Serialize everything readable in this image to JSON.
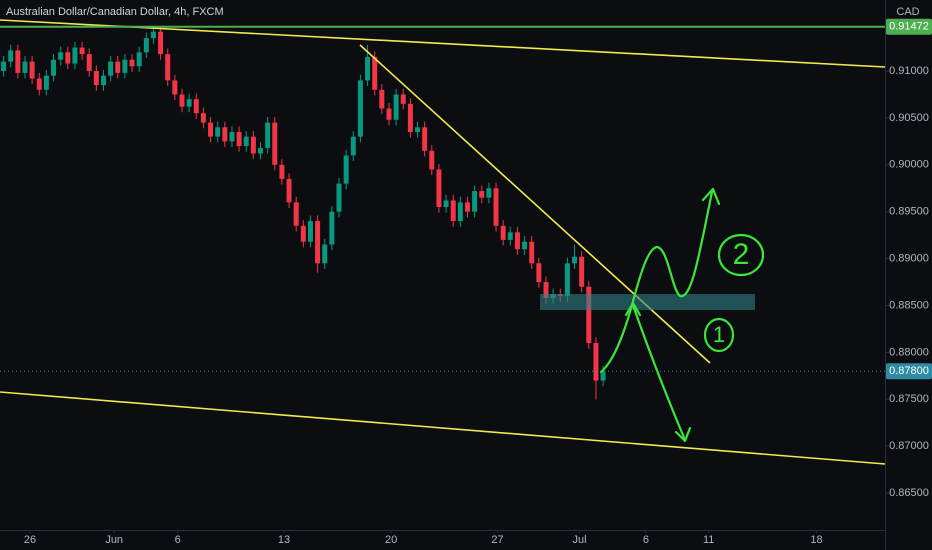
{
  "chart_data": {
    "type": "candlestick",
    "title": "Australian Dollar/Canadian Dollar, 4h, FXCM",
    "currency": "CAD",
    "up_color": "#089981",
    "down_color": "#f23645",
    "open": [
      0.91,
      0.911,
      0.9122,
      0.9098,
      0.911,
      0.9092,
      0.908,
      0.9095,
      0.9112,
      0.912,
      0.9108,
      0.9125,
      0.9118,
      0.91,
      0.9085,
      0.9095,
      0.911,
      0.9098,
      0.9112,
      0.9105,
      0.912,
      0.9135,
      0.9142,
      0.9118,
      0.909,
      0.9075,
      0.9062,
      0.907,
      0.9055,
      0.9045,
      0.903,
      0.904,
      0.9025,
      0.9035,
      0.902,
      0.903,
      0.9012,
      0.9018,
      0.9045,
      0.9,
      0.8985,
      0.896,
      0.8935,
      0.8918,
      0.894,
      0.8895,
      0.8915,
      0.895,
      0.898,
      0.901,
      0.903,
      0.909,
      0.9115,
      0.908,
      0.906,
      0.9048,
      0.9075,
      0.9065,
      0.9035,
      0.904,
      0.9015,
      0.8995,
      0.8955,
      0.8962,
      0.894,
      0.896,
      0.895,
      0.8972,
      0.8965,
      0.8975,
      0.8935,
      0.892,
      0.8928,
      0.891,
      0.8918,
      0.8895,
      0.8875,
      0.8858,
      0.8862,
      0.886,
      0.8895,
      0.8902,
      0.887,
      0.881,
      0.877
    ],
    "high": [
      0.9116,
      0.9128,
      0.9128,
      0.9116,
      0.9116,
      0.9098,
      0.9101,
      0.9118,
      0.9126,
      0.9126,
      0.9131,
      0.9131,
      0.9124,
      0.9106,
      0.9101,
      0.9116,
      0.9116,
      0.9118,
      0.9118,
      0.9126,
      0.9141,
      0.9148,
      0.9148,
      0.9124,
      0.9096,
      0.9081,
      0.9076,
      0.9076,
      0.9061,
      0.9051,
      0.9046,
      0.9046,
      0.9041,
      0.9041,
      0.9036,
      0.9036,
      0.9024,
      0.9051,
      0.9051,
      0.9006,
      0.8991,
      0.8966,
      0.8941,
      0.8946,
      0.8946,
      0.8921,
      0.8956,
      0.8986,
      0.9016,
      0.9036,
      0.9096,
      0.9128,
      0.9121,
      0.9086,
      0.9066,
      0.9081,
      0.9081,
      0.9071,
      0.9046,
      0.9046,
      0.9021,
      0.9001,
      0.8968,
      0.8968,
      0.8966,
      0.8966,
      0.8978,
      0.8978,
      0.8981,
      0.8981,
      0.8941,
      0.8934,
      0.8934,
      0.8924,
      0.8924,
      0.8901,
      0.8881,
      0.8868,
      0.8868,
      0.8901,
      0.8915,
      0.8908,
      0.8876,
      0.8816,
      0.8786
    ],
    "low": [
      0.9094,
      0.9104,
      0.9092,
      0.9092,
      0.9086,
      0.9074,
      0.9074,
      0.9089,
      0.9106,
      0.9102,
      0.9102,
      0.9112,
      0.9094,
      0.9079,
      0.9079,
      0.9089,
      0.9092,
      0.9092,
      0.9099,
      0.9099,
      0.9114,
      0.9129,
      0.9112,
      0.9084,
      0.9069,
      0.9056,
      0.9056,
      0.9049,
      0.9039,
      0.9024,
      0.9024,
      0.9019,
      0.9019,
      0.9014,
      0.9014,
      0.9006,
      0.9006,
      0.9012,
      0.8994,
      0.8979,
      0.8954,
      0.8929,
      0.8912,
      0.8912,
      0.8885,
      0.8889,
      0.8909,
      0.8944,
      0.8974,
      0.9004,
      0.9024,
      0.9084,
      0.9074,
      0.9054,
      0.9042,
      0.9042,
      0.9059,
      0.9029,
      0.9029,
      0.9009,
      0.8989,
      0.8949,
      0.8949,
      0.8934,
      0.8934,
      0.8944,
      0.8944,
      0.8959,
      0.8959,
      0.8929,
      0.8914,
      0.8914,
      0.8904,
      0.8904,
      0.8889,
      0.8869,
      0.8852,
      0.8852,
      0.8854,
      0.8854,
      0.8889,
      0.8864,
      0.8804,
      0.875,
      0.8764
    ],
    "close": [
      0.911,
      0.9122,
      0.9098,
      0.911,
      0.9092,
      0.908,
      0.9095,
      0.9112,
      0.912,
      0.9108,
      0.9125,
      0.9118,
      0.91,
      0.9085,
      0.9095,
      0.911,
      0.9098,
      0.9112,
      0.9105,
      0.912,
      0.9135,
      0.9142,
      0.9118,
      0.909,
      0.9075,
      0.9062,
      0.907,
      0.9055,
      0.9045,
      0.903,
      0.904,
      0.9025,
      0.9035,
      0.902,
      0.903,
      0.9012,
      0.9018,
      0.9045,
      0.9,
      0.8985,
      0.896,
      0.8935,
      0.8918,
      0.894,
      0.8895,
      0.8915,
      0.895,
      0.898,
      0.901,
      0.903,
      0.909,
      0.9115,
      0.908,
      0.906,
      0.9048,
      0.9075,
      0.9065,
      0.9035,
      0.904,
      0.9015,
      0.8995,
      0.8955,
      0.8962,
      0.894,
      0.896,
      0.895,
      0.8972,
      0.8965,
      0.8975,
      0.8935,
      0.892,
      0.8928,
      0.891,
      0.8918,
      0.8895,
      0.8875,
      0.8858,
      0.8862,
      0.886,
      0.8895,
      0.8902,
      0.887,
      0.881,
      0.877,
      0.878
    ],
    "xlim": [
      0,
      124
    ],
    "xticks": [
      {
        "value": 4.2,
        "label": "26"
      },
      {
        "value": 16.0,
        "label": "Jun"
      },
      {
        "value": 24.9,
        "label": "6"
      },
      {
        "value": 39.8,
        "label": "13"
      },
      {
        "value": 54.8,
        "label": "20"
      },
      {
        "value": 69.7,
        "label": "27"
      },
      {
        "value": 81.2,
        "label": "Jul"
      },
      {
        "value": 90.5,
        "label": "6"
      },
      {
        "value": 99.3,
        "label": "11"
      },
      {
        "value": 114.4,
        "label": "18"
      }
    ],
    "ylim": [
      0.86107,
      0.91757
    ],
    "yticks": [
      {
        "value": 0.865,
        "label": "0.86500"
      },
      {
        "value": 0.87,
        "label": "0.87000"
      },
      {
        "value": 0.875,
        "label": "0.87500"
      },
      {
        "value": 0.88,
        "label": "0.88000"
      },
      {
        "value": 0.885,
        "label": "0.88500"
      },
      {
        "value": 0.89,
        "label": "0.89000"
      },
      {
        "value": 0.895,
        "label": "0.89500"
      },
      {
        "value": 0.9,
        "label": "0.90000"
      },
      {
        "value": 0.905,
        "label": "0.90500"
      },
      {
        "value": 0.91,
        "label": "0.91000"
      }
    ],
    "levels": [
      {
        "value": 0.91472,
        "label": "0.91472",
        "color": "#4caf50",
        "style": "solid"
      },
      {
        "value": 0.878,
        "label": "0.87800",
        "color": "#2f8aa3",
        "style": "dotted"
      }
    ],
    "annotations": [
      "1",
      "2"
    ]
  }
}
